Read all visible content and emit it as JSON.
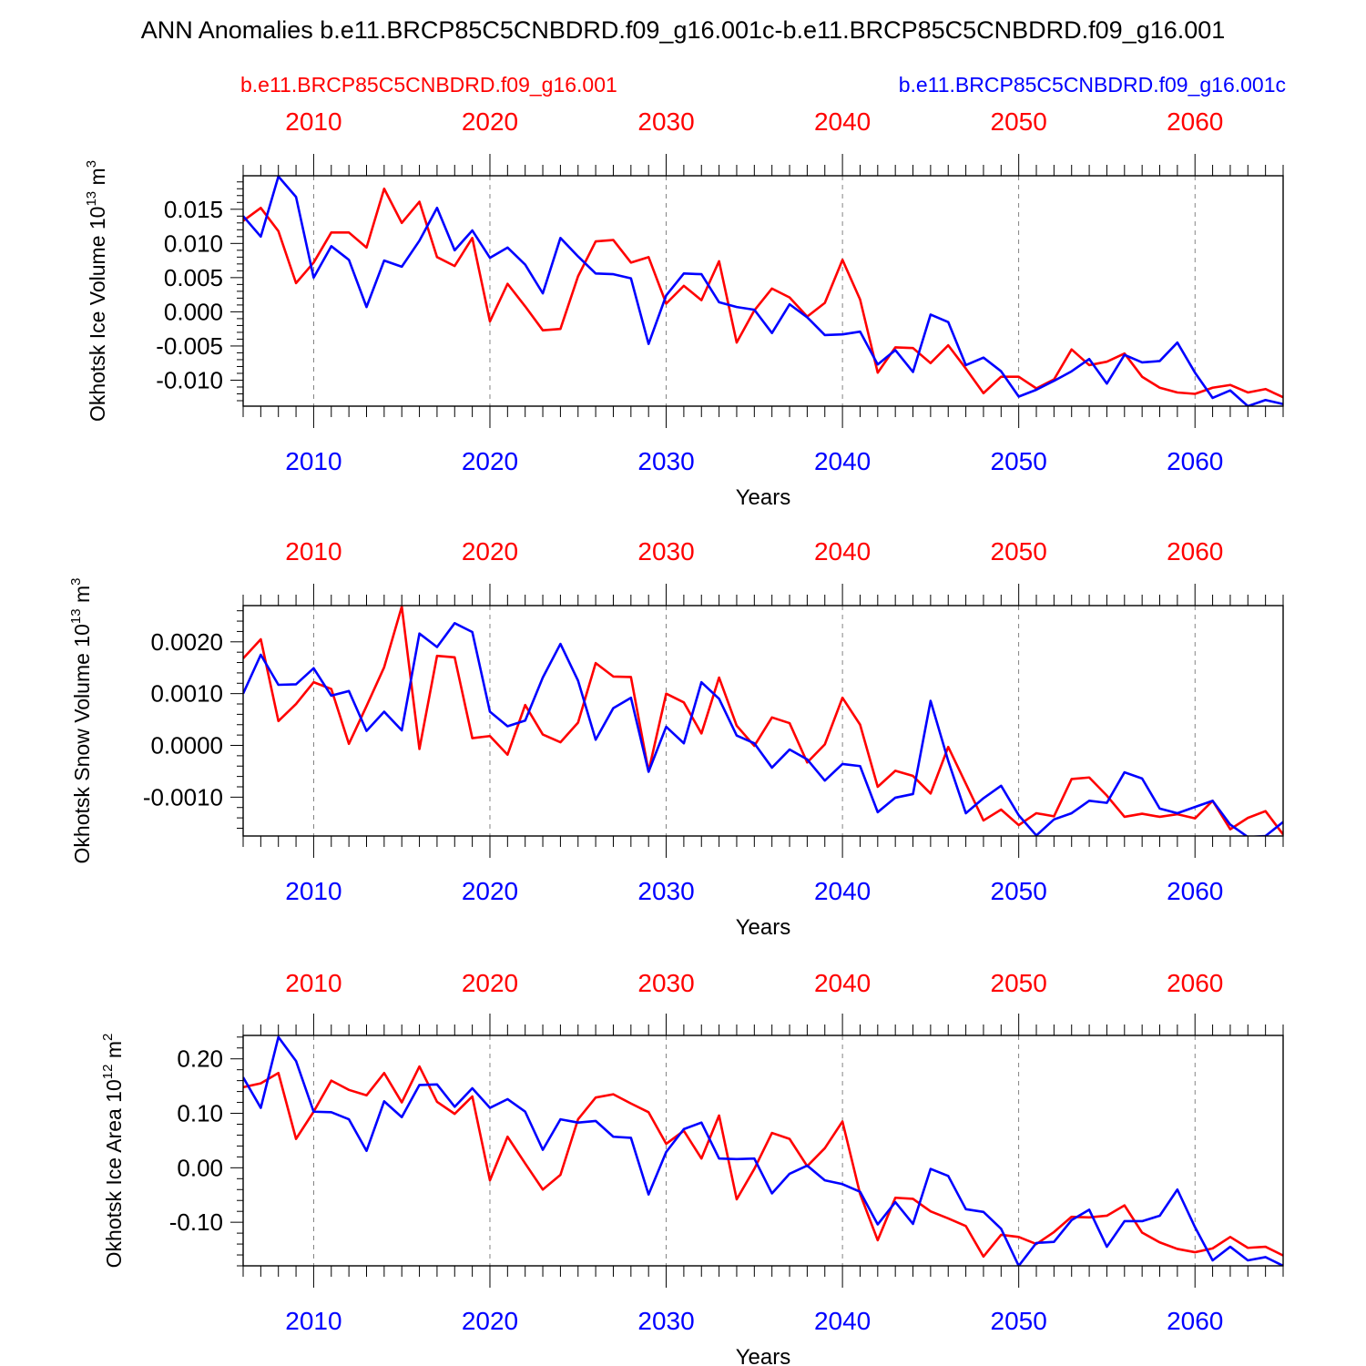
{
  "title": "ANN Anomalies b.e11.BRCP85C5CNBDRD.f09_g16.001c-b.e11.BRCP85C5CNBDRD.f09_g16.001",
  "legend": {
    "red_label": "b.e11.BRCP85C5CNBDRD.f09_g16.001",
    "blue_label": "b.e11.BRCP85C5CNBDRD.f09_g16.001c"
  },
  "colors": {
    "red": "#ff0000",
    "blue": "#0000ff",
    "axis": "#000000"
  },
  "chart_data": [
    {
      "type": "line",
      "ylabel": "Okhotsk Ice Volume",
      "units_base": "10",
      "units_exp": "13",
      "units_unit": "m",
      "units_unit_exp": "3",
      "xlabel": "Years",
      "xlim": [
        2006,
        2065
      ],
      "ylim": [
        -0.0138,
        0.0199
      ],
      "yticks": [
        -0.01,
        -0.005,
        0.0,
        0.005,
        0.01,
        0.015
      ],
      "ytick_labels": [
        "-0.010",
        "-0.005",
        "0.000",
        "0.005",
        "0.010",
        "0.015"
      ],
      "xticks": [
        2010,
        2020,
        2030,
        2040,
        2050,
        2060
      ],
      "xtick_labels": [
        "2010",
        "2020",
        "2030",
        "2040",
        "2050",
        "2060"
      ],
      "x_start": 2006,
      "series": [
        {
          "name": "b.e11.BRCP85C5CNBDRD.f09_g16.001",
          "color": "red",
          "values": [
            0.0133,
            0.0152,
            0.0118,
            0.0042,
            0.0072,
            0.0116,
            0.0116,
            0.0094,
            0.018,
            0.013,
            0.0161,
            0.008,
            0.0067,
            0.0108,
            -0.0014,
            0.0041,
            0.0008,
            -0.0027,
            -0.0025,
            0.0052,
            0.0103,
            0.0105,
            0.0072,
            0.008,
            0.0012,
            0.0038,
            0.0017,
            0.0074,
            -0.0045,
            0.0002,
            0.0034,
            0.0021,
            -0.0007,
            0.0013,
            0.0076,
            0.0018,
            -0.0089,
            -0.0052,
            -0.0053,
            -0.0075,
            -0.0049,
            -0.0083,
            -0.0119,
            -0.0095,
            -0.0095,
            -0.0112,
            -0.0099,
            -0.0055,
            -0.0078,
            -0.0073,
            -0.0061,
            -0.0095,
            -0.0111,
            -0.0118,
            -0.012,
            -0.0111,
            -0.0107,
            -0.0118,
            -0.0113,
            -0.0125
          ]
        },
        {
          "name": "b.e11.BRCP85C5CNBDRD.f09_g16.001c",
          "color": "blue",
          "values": [
            0.014,
            0.011,
            0.0198,
            0.0168,
            0.005,
            0.0096,
            0.0076,
            0.0007,
            0.0075,
            0.0066,
            0.0104,
            0.0152,
            0.009,
            0.0119,
            0.0079,
            0.0094,
            0.0069,
            0.0027,
            0.0108,
            0.0081,
            0.0056,
            0.0055,
            0.0049,
            -0.0047,
            0.0024,
            0.0056,
            0.0055,
            0.0014,
            0.0007,
            0.0003,
            -0.0031,
            0.0011,
            -0.0008,
            -0.0034,
            -0.0033,
            -0.0029,
            -0.0077,
            -0.0056,
            -0.0088,
            -0.0004,
            -0.0015,
            -0.0078,
            -0.0067,
            -0.0087,
            -0.0124,
            -0.0114,
            -0.0101,
            -0.0087,
            -0.0069,
            -0.0105,
            -0.0063,
            -0.0074,
            -0.0072,
            -0.0045,
            -0.0089,
            -0.0126,
            -0.0115,
            -0.0138,
            -0.0129,
            -0.0135
          ]
        }
      ]
    },
    {
      "type": "line",
      "ylabel": "Okhotsk Snow Volume",
      "units_base": "10",
      "units_exp": "13",
      "units_unit": "m",
      "units_unit_exp": "3",
      "xlabel": "Years",
      "xlim": [
        2006,
        2065
      ],
      "ylim": [
        -0.00175,
        0.0027
      ],
      "yticks": [
        -0.001,
        0.0,
        0.001,
        0.002
      ],
      "ytick_labels": [
        "-0.0010",
        "0.0000",
        "0.0010",
        "0.0020"
      ],
      "xticks": [
        2010,
        2020,
        2030,
        2040,
        2050,
        2060
      ],
      "xtick_labels": [
        "2010",
        "2020",
        "2030",
        "2040",
        "2050",
        "2060"
      ],
      "x_start": 2006,
      "series": [
        {
          "name": "b.e11.BRCP85C5CNBDRD.f09_g16.001",
          "color": "red",
          "values": [
            0.00168,
            0.00205,
            0.00047,
            0.0008,
            0.00122,
            0.00109,
            3e-05,
            0.00076,
            0.00151,
            0.00268,
            -7e-05,
            0.00173,
            0.0017,
            0.00014,
            0.00018,
            -0.00018,
            0.00078,
            0.00021,
            6e-05,
            0.00044,
            0.00159,
            0.00133,
            0.00132,
            -0.0005,
            0.001,
            0.00083,
            0.00023,
            0.00131,
            0.00038,
            -1e-05,
            0.00054,
            0.00043,
            -0.00033,
            2e-05,
            0.00092,
            0.0004,
            -0.0008,
            -0.00049,
            -0.00059,
            -0.00093,
            -3e-05,
            -0.00074,
            -0.00145,
            -0.00124,
            -0.00154,
            -0.00131,
            -0.00137,
            -0.00065,
            -0.00062,
            -0.00097,
            -0.00138,
            -0.00132,
            -0.00138,
            -0.00133,
            -0.00141,
            -0.00107,
            -0.00162,
            -0.0014,
            -0.00127,
            -0.00172
          ]
        },
        {
          "name": "b.e11.BRCP85C5CNBDRD.f09_g16.001c",
          "color": "blue",
          "values": [
            0.001,
            0.00175,
            0.00117,
            0.00118,
            0.00149,
            0.00096,
            0.00105,
            0.00028,
            0.00065,
            0.00029,
            0.00216,
            0.0019,
            0.00236,
            0.00219,
            0.00065,
            0.00037,
            0.00048,
            0.00131,
            0.00196,
            0.00125,
            0.00011,
            0.00072,
            0.00092,
            -0.00051,
            0.00036,
            4e-05,
            0.00122,
            0.0009,
            0.00019,
            4e-05,
            -0.00043,
            -8e-05,
            -0.00027,
            -0.00068,
            -0.00036,
            -0.0004,
            -0.00129,
            -0.00101,
            -0.00094,
            0.00086,
            -0.0003,
            -0.00131,
            -0.00102,
            -0.00078,
            -0.00135,
            -0.00174,
            -0.00143,
            -0.00131,
            -0.00107,
            -0.00111,
            -0.00052,
            -0.00064,
            -0.00122,
            -0.00131,
            -0.00119,
            -0.00107,
            -0.00153,
            -0.00177,
            -0.00175,
            -0.00148
          ]
        }
      ]
    },
    {
      "type": "line",
      "ylabel": "Okhotsk Ice Area",
      "units_base": "10",
      "units_exp": "12",
      "units_unit": "m",
      "units_unit_exp": "2",
      "xlabel": "Years",
      "xlim": [
        2006,
        2065
      ],
      "ylim": [
        -0.18,
        0.243
      ],
      "yticks": [
        -0.1,
        0.0,
        0.1,
        0.2
      ],
      "ytick_labels": [
        "-0.10",
        "0.00",
        "0.10",
        "0.20"
      ],
      "xticks": [
        2010,
        2020,
        2030,
        2040,
        2050,
        2060
      ],
      "xtick_labels": [
        "2010",
        "2020",
        "2030",
        "2040",
        "2050",
        "2060"
      ],
      "x_start": 2006,
      "series": [
        {
          "name": "b.e11.BRCP85C5CNBDRD.f09_g16.001",
          "color": "red",
          "values": [
            0.148,
            0.155,
            0.174,
            0.053,
            0.103,
            0.16,
            0.143,
            0.133,
            0.174,
            0.12,
            0.186,
            0.121,
            0.099,
            0.131,
            -0.023,
            0.057,
            0.008,
            -0.04,
            -0.013,
            0.089,
            0.129,
            0.135,
            0.118,
            0.102,
            0.044,
            0.068,
            0.017,
            0.096,
            -0.058,
            -0.002,
            0.064,
            0.053,
            0.003,
            0.036,
            0.085,
            -0.048,
            -0.133,
            -0.055,
            -0.057,
            -0.08,
            -0.093,
            -0.107,
            -0.163,
            -0.123,
            -0.127,
            -0.14,
            -0.118,
            -0.09,
            -0.091,
            -0.088,
            -0.069,
            -0.119,
            -0.137,
            -0.149,
            -0.155,
            -0.148,
            -0.127,
            -0.147,
            -0.145,
            -0.161
          ]
        },
        {
          "name": "b.e11.BRCP85C5CNBDRD.f09_g16.001c",
          "color": "blue",
          "values": [
            0.166,
            0.11,
            0.24,
            0.196,
            0.103,
            0.102,
            0.089,
            0.031,
            0.122,
            0.093,
            0.152,
            0.153,
            0.112,
            0.146,
            0.11,
            0.126,
            0.103,
            0.033,
            0.089,
            0.083,
            0.086,
            0.057,
            0.055,
            -0.049,
            0.029,
            0.071,
            0.083,
            0.017,
            0.016,
            0.017,
            -0.047,
            -0.011,
            0.004,
            -0.023,
            -0.03,
            -0.044,
            -0.104,
            -0.063,
            -0.103,
            -0.002,
            -0.015,
            -0.076,
            -0.081,
            -0.112,
            -0.18,
            -0.138,
            -0.136,
            -0.096,
            -0.077,
            -0.145,
            -0.098,
            -0.098,
            -0.088,
            -0.04,
            -0.109,
            -0.17,
            -0.145,
            -0.17,
            -0.164,
            -0.18
          ]
        }
      ]
    }
  ]
}
